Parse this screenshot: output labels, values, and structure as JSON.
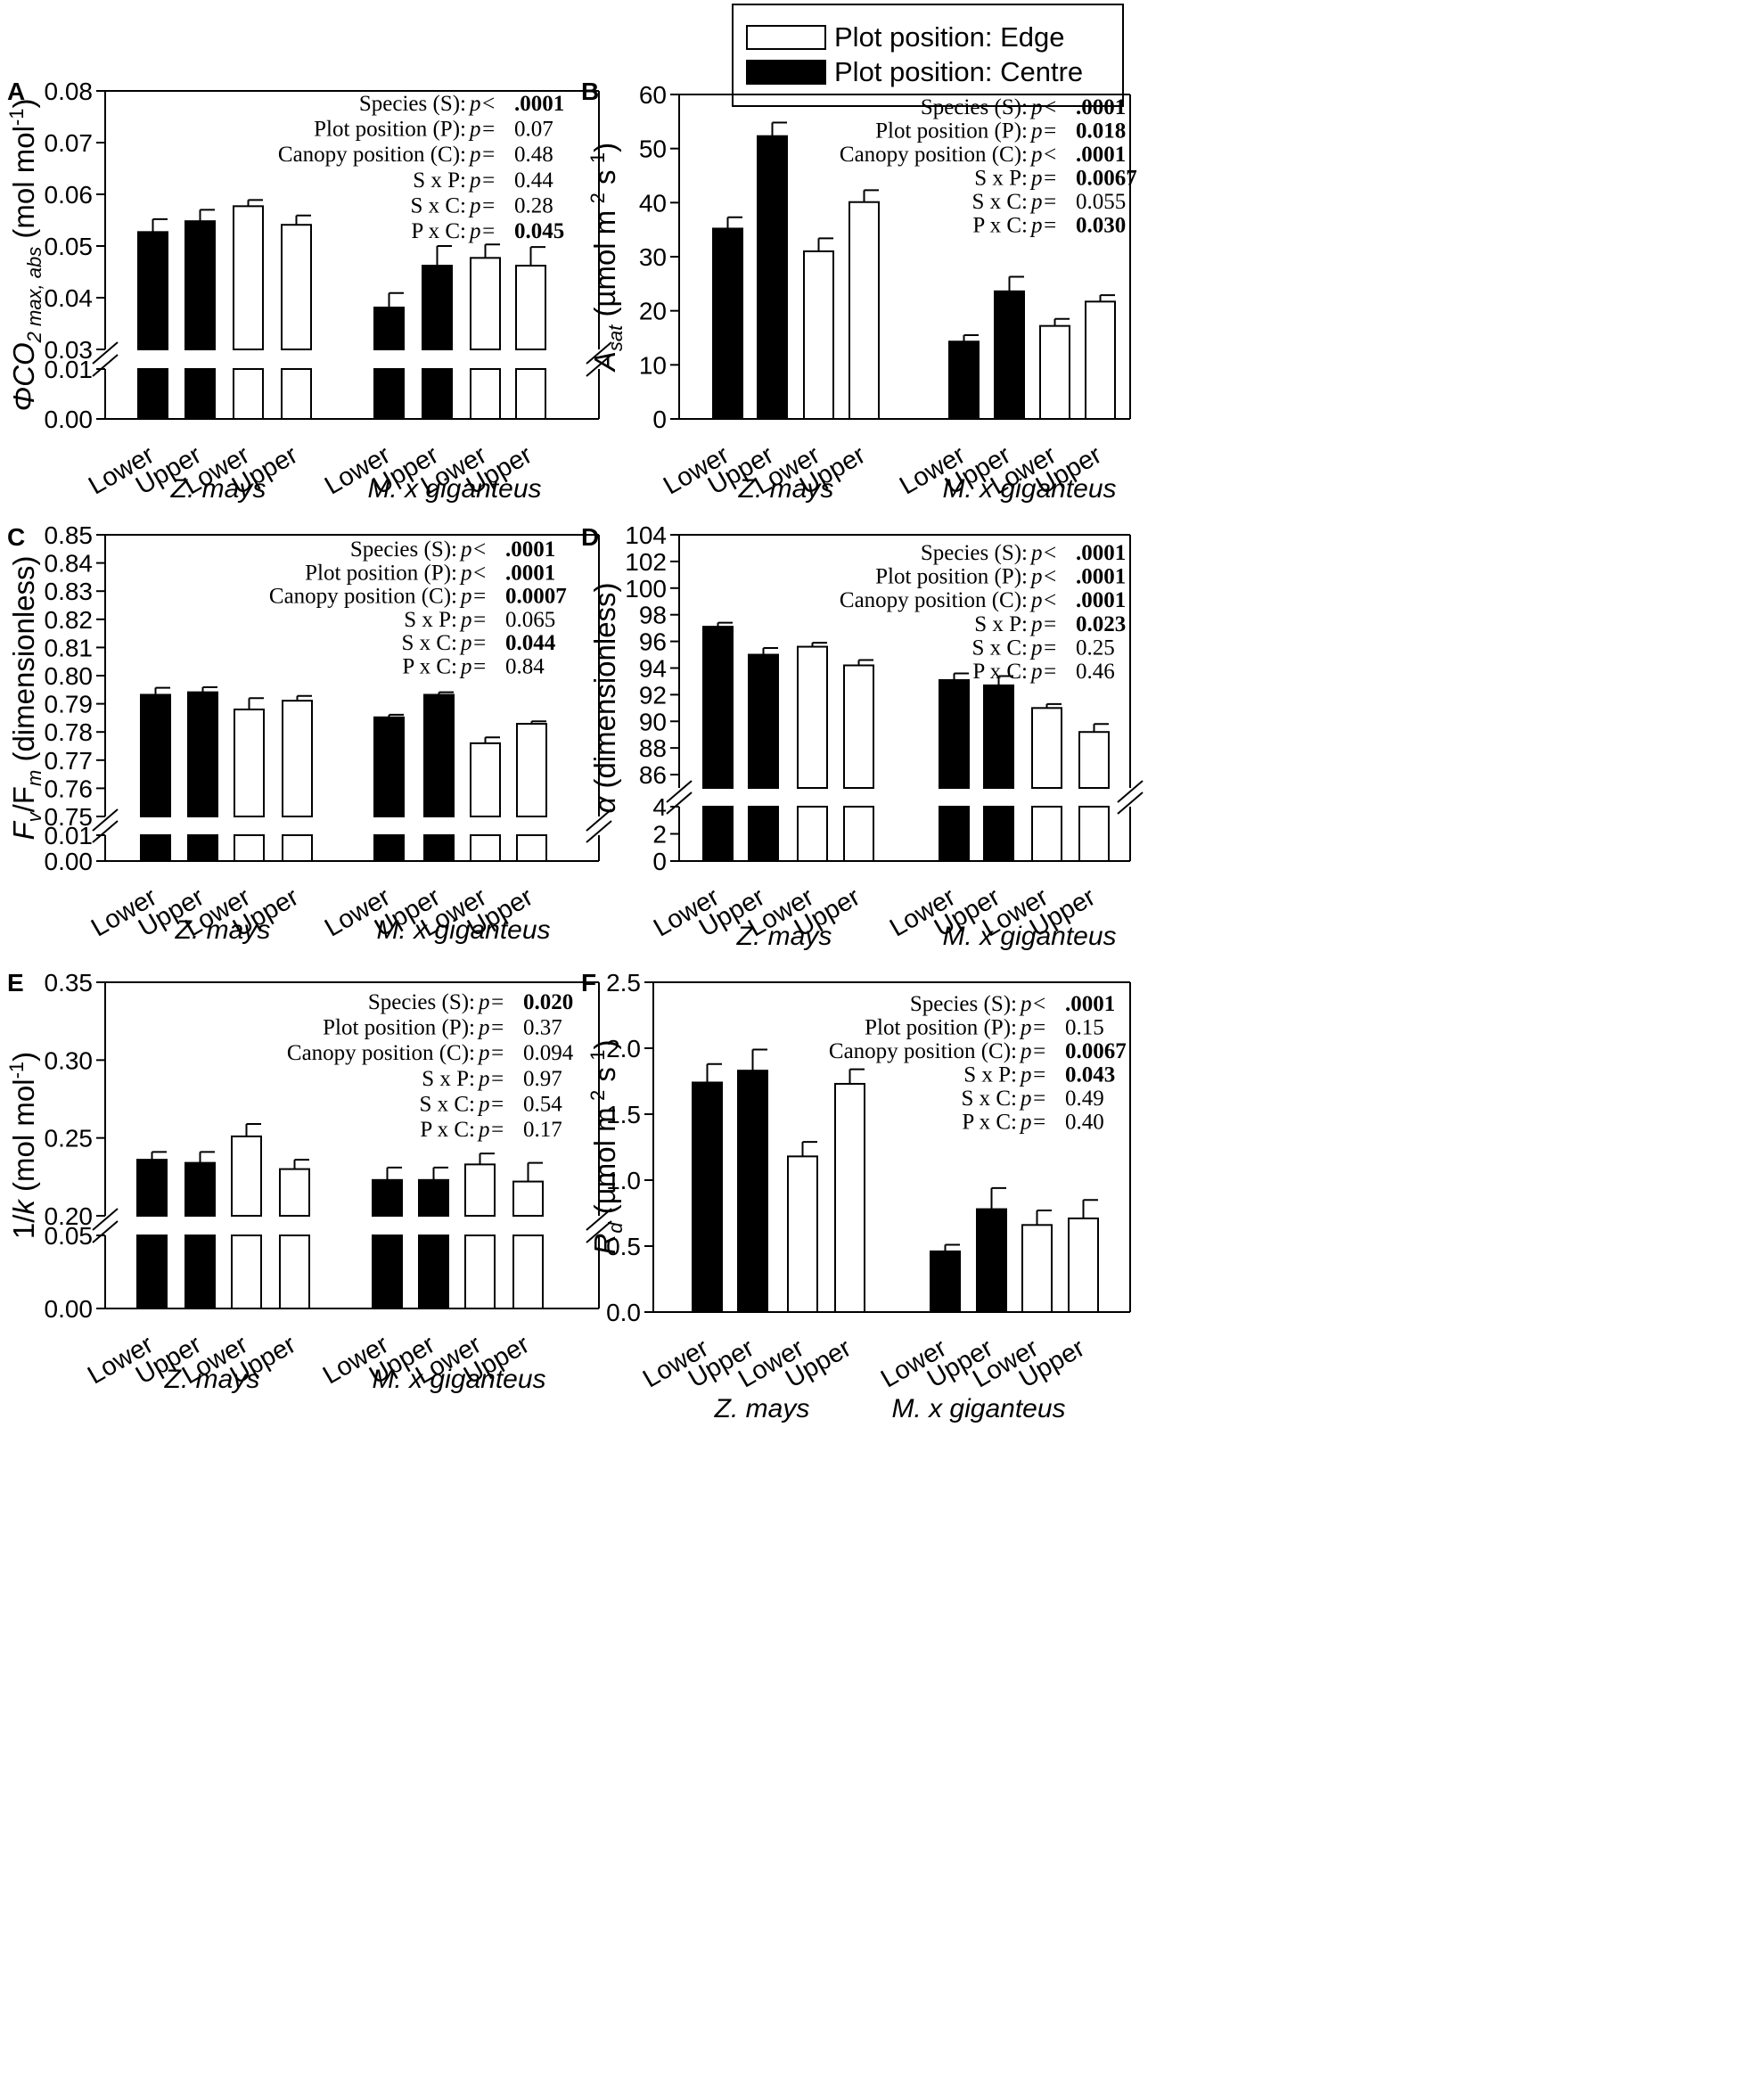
{
  "legend": {
    "edge_label": "Plot position: Edge",
    "centre_label": "Plot position: Centre"
  },
  "colors": {
    "centre": "#000000",
    "edge": "#ffffff",
    "grey_p": "#909090"
  },
  "chart_data": [
    {
      "panel": "A",
      "type": "bar",
      "ylabel_main": "ΦCO",
      "ylabel_sub1": "2 max, abs",
      "ylabel_rest": " (mol mol",
      "ylabel_sup": "-1",
      "ylabel_end": ")",
      "ylim": [
        0,
        0.08
      ],
      "axis_break": {
        "lower": [
          0,
          0.01
        ],
        "upper": [
          0.03,
          0.08
        ]
      },
      "yticks": [
        "0.00",
        "0.01",
        "0.03",
        "0.04",
        "0.05",
        "0.06",
        "0.07",
        "0.08"
      ],
      "categories": [
        "Lower",
        "Upper",
        "Lower",
        "Upper",
        "Lower",
        "Upper",
        "Lower",
        "Upper"
      ],
      "groups": [
        "Z. mays",
        "M. x giganteus"
      ],
      "plot_position": [
        "Centre",
        "Centre",
        "Edge",
        "Edge",
        "Centre",
        "Centre",
        "Edge",
        "Edge"
      ],
      "values": [
        0.0527,
        0.0548,
        0.0577,
        0.0541,
        0.0381,
        0.0462,
        0.0477,
        0.0462
      ],
      "errors": [
        0.0025,
        0.0022,
        0.0012,
        0.0018,
        0.0028,
        0.0038,
        0.0026,
        0.0036
      ],
      "stats": [
        {
          "label": "Species (S):",
          "p": "p<",
          "value": ".0001",
          "style": "bold"
        },
        {
          "label": "Plot position (P):",
          "p": "p=",
          "value": "0.07",
          "style": "grey"
        },
        {
          "label": "Canopy position (C):",
          "p": "p=",
          "value": "0.48",
          "style": "normal"
        },
        {
          "label": "S x P:",
          "p": "p=",
          "value": "0.44",
          "style": "normal"
        },
        {
          "label": "S x C:",
          "p": "p=",
          "value": "0.28",
          "style": "normal"
        },
        {
          "label": "P x C:",
          "p": "p=",
          "value": "0.045",
          "style": "bold"
        }
      ]
    },
    {
      "panel": "B",
      "type": "bar",
      "ylabel_main": "A",
      "ylabel_sub1": "sat",
      "ylabel_rest": " (µmol m",
      "ylabel_sup": "-2",
      "ylabel_rest2": " s",
      "ylabel_sup2": "-1",
      "ylabel_end": ")",
      "ylim": [
        0,
        60
      ],
      "axis_break": null,
      "yticks": [
        "0",
        "10",
        "20",
        "30",
        "40",
        "50",
        "60"
      ],
      "categories": [
        "Lower",
        "Upper",
        "Lower",
        "Upper",
        "Lower",
        "Upper",
        "Lower",
        "Upper"
      ],
      "groups": [
        "Z. mays",
        "M. x giganteus"
      ],
      "plot_position": [
        "Centre",
        "Centre",
        "Edge",
        "Edge",
        "Centre",
        "Centre",
        "Edge",
        "Edge"
      ],
      "values": [
        35.2,
        52.3,
        31.0,
        40.1,
        14.3,
        23.6,
        17.2,
        21.7
      ],
      "errors": [
        2.1,
        2.5,
        2.4,
        2.2,
        1.2,
        2.7,
        1.3,
        1.2
      ],
      "stats": [
        {
          "label": "Species (S):",
          "p": "p<",
          "value": ".0001",
          "style": "bold"
        },
        {
          "label": "Plot position (P):",
          "p": "p=",
          "value": "0.018",
          "style": "bold"
        },
        {
          "label": "Canopy position (C):",
          "p": "p<",
          "value": ".0001",
          "style": "bold"
        },
        {
          "label": "S x P:",
          "p": "p=",
          "value": "0.0067",
          "style": "bold"
        },
        {
          "label": "S x C:",
          "p": "p=",
          "value": "0.055",
          "style": "grey"
        },
        {
          "label": "P x C:",
          "p": "p=",
          "value": "0.030",
          "style": "bold"
        }
      ]
    },
    {
      "panel": "C",
      "type": "bar",
      "ylabel_main": "F",
      "ylabel_sub1": "v",
      "ylabel_rest": "/F",
      "ylabel_sub2": "m",
      "ylabel_end": " (dimensionless)",
      "ylim": [
        0,
        0.85
      ],
      "axis_break": {
        "lower": [
          0,
          0.01
        ],
        "upper": [
          0.75,
          0.85
        ]
      },
      "yticks": [
        "0.00",
        "0.01",
        "0.75",
        "0.76",
        "0.77",
        "0.78",
        "0.79",
        "0.80",
        "0.81",
        "0.82",
        "0.83",
        "0.84",
        "0.85"
      ],
      "categories": [
        "Lower",
        "Upper",
        "Lower",
        "Upper",
        "Lower",
        "Upper",
        "Lower",
        "Upper"
      ],
      "groups": [
        "Z. mays",
        "M. x giganteus"
      ],
      "plot_position": [
        "Centre",
        "Centre",
        "Edge",
        "Edge",
        "Centre",
        "Centre",
        "Edge",
        "Edge"
      ],
      "values": [
        0.7932,
        0.7941,
        0.788,
        0.7911,
        0.7852,
        0.7932,
        0.776,
        0.7829
      ],
      "errors": [
        0.0025,
        0.0018,
        0.004,
        0.0017,
        0.0009,
        0.0009,
        0.0021,
        0.0009
      ],
      "stats": [
        {
          "label": "Species (S):",
          "p": "p<",
          "value": ".0001",
          "style": "bold"
        },
        {
          "label": "Plot position (P):",
          "p": "p<",
          "value": ".0001",
          "style": "bold"
        },
        {
          "label": "Canopy position (C):",
          "p": "p=",
          "value": "0.0007",
          "style": "bold"
        },
        {
          "label": "S x P:",
          "p": "p=",
          "value": "0.065",
          "style": "grey"
        },
        {
          "label": "S x C:",
          "p": "p=",
          "value": "0.044",
          "style": "bold"
        },
        {
          "label": "P x C:",
          "p": "p=",
          "value": "0.84",
          "style": "normal"
        }
      ]
    },
    {
      "panel": "D",
      "type": "bar",
      "ylabel_main": "α",
      "ylabel_end": " (dimensionless)",
      "ylim": [
        0,
        104
      ],
      "axis_break": {
        "lower": [
          0,
          4
        ],
        "upper": [
          85,
          104
        ]
      },
      "yticks": [
        "0",
        "2",
        "4",
        "86",
        "88",
        "90",
        "92",
        "94",
        "96",
        "98",
        "100",
        "102",
        "104"
      ],
      "categories": [
        "Lower",
        "Upper",
        "Lower",
        "Upper",
        "Lower",
        "Upper",
        "Lower",
        "Upper"
      ],
      "groups": [
        "Z. mays",
        "M. x giganteus"
      ],
      "plot_position": [
        "Centre",
        "Centre",
        "Edge",
        "Edge",
        "Centre",
        "Centre",
        "Edge",
        "Edge"
      ],
      "values": [
        97.1,
        95.0,
        95.6,
        94.2,
        93.1,
        92.7,
        91.0,
        89.2
      ],
      "errors": [
        0.3,
        0.5,
        0.3,
        0.4,
        0.5,
        0.7,
        0.3,
        0.6
      ],
      "stats": [
        {
          "label": "Species (S):",
          "p": "p<",
          "value": ".0001",
          "style": "bold"
        },
        {
          "label": "Plot position (P):",
          "p": "p<",
          "value": ".0001",
          "style": "bold"
        },
        {
          "label": "Canopy position (C):",
          "p": "p<",
          "value": ".0001",
          "style": "bold"
        },
        {
          "label": "S x P:",
          "p": "p=",
          "value": "0.023",
          "style": "bold"
        },
        {
          "label": "S x C:",
          "p": "p=",
          "value": "0.25",
          "style": "normal"
        },
        {
          "label": "P x C:",
          "p": "p=",
          "value": "0.46",
          "style": "normal"
        }
      ]
    },
    {
      "panel": "E",
      "type": "bar",
      "ylabel_main": "1/k",
      "ylabel_rest": " (mol mol",
      "ylabel_sup": "-1",
      "ylabel_end": ")",
      "ylim": [
        0,
        0.35
      ],
      "axis_break": {
        "lower": [
          0,
          0.05
        ],
        "upper": [
          0.2,
          0.35
        ]
      },
      "yticks": [
        "0.00",
        "0.05",
        "0.20",
        "0.25",
        "0.30",
        "0.35"
      ],
      "categories": [
        "Lower",
        "Upper",
        "Lower",
        "Upper",
        "Lower",
        "Upper",
        "Lower",
        "Upper"
      ],
      "groups": [
        "Z. mays",
        "M. x giganteus"
      ],
      "plot_position": [
        "Centre",
        "Centre",
        "Edge",
        "Edge",
        "Centre",
        "Centre",
        "Edge",
        "Edge"
      ],
      "values": [
        0.236,
        0.234,
        0.251,
        0.23,
        0.223,
        0.223,
        0.233,
        0.222
      ],
      "errors": [
        0.005,
        0.007,
        0.008,
        0.006,
        0.008,
        0.008,
        0.007,
        0.012
      ],
      "stats": [
        {
          "label": "Species (S):",
          "p": "p=",
          "value": "0.020",
          "style": "bold"
        },
        {
          "label": "Plot position (P):",
          "p": "p=",
          "value": "0.37",
          "style": "normal"
        },
        {
          "label": "Canopy position (C):",
          "p": "p=",
          "value": "0.094",
          "style": "grey"
        },
        {
          "label": "S x P:",
          "p": "p=",
          "value": "0.97",
          "style": "normal"
        },
        {
          "label": "S x C:",
          "p": "p=",
          "value": "0.54",
          "style": "normal"
        },
        {
          "label": "P x C:",
          "p": "p=",
          "value": "0.17",
          "style": "normal"
        }
      ]
    },
    {
      "panel": "F",
      "type": "bar",
      "ylabel_main": "R",
      "ylabel_sub1": "d",
      "ylabel_rest": " (µmol m",
      "ylabel_sup": "-2",
      "ylabel_rest2": " s",
      "ylabel_sup2": "-1",
      "ylabel_end": ")",
      "ylim": [
        0,
        2.5
      ],
      "axis_break": null,
      "yticks": [
        "0.0",
        "0.5",
        "1.0",
        "1.5",
        "2.0",
        "2.5"
      ],
      "categories": [
        "Lower",
        "Upper",
        "Lower",
        "Upper",
        "Lower",
        "Upper",
        "Lower",
        "Upper"
      ],
      "groups": [
        "Z. mays",
        "M. x giganteus"
      ],
      "plot_position": [
        "Centre",
        "Centre",
        "Edge",
        "Edge",
        "Centre",
        "Centre",
        "Edge",
        "Edge"
      ],
      "values": [
        1.74,
        1.83,
        1.18,
        1.73,
        0.46,
        0.78,
        0.66,
        0.71
      ],
      "errors": [
        0.14,
        0.16,
        0.11,
        0.11,
        0.05,
        0.16,
        0.11,
        0.14
      ],
      "stats": [
        {
          "label": "Species (S):",
          "p": "p<",
          "value": ".0001",
          "style": "bold"
        },
        {
          "label": "Plot position (P):",
          "p": "p=",
          "value": "0.15",
          "style": "normal"
        },
        {
          "label": "Canopy position (C):",
          "p": "p=",
          "value": "0.0067",
          "style": "bold"
        },
        {
          "label": "S x P:",
          "p": "p=",
          "value": "0.043",
          "style": "bold"
        },
        {
          "label": "S x C:",
          "p": "p=",
          "value": "0.49",
          "style": "normal"
        },
        {
          "label": "P x C:",
          "p": "p=",
          "value": "0.40",
          "style": "normal"
        }
      ]
    }
  ]
}
